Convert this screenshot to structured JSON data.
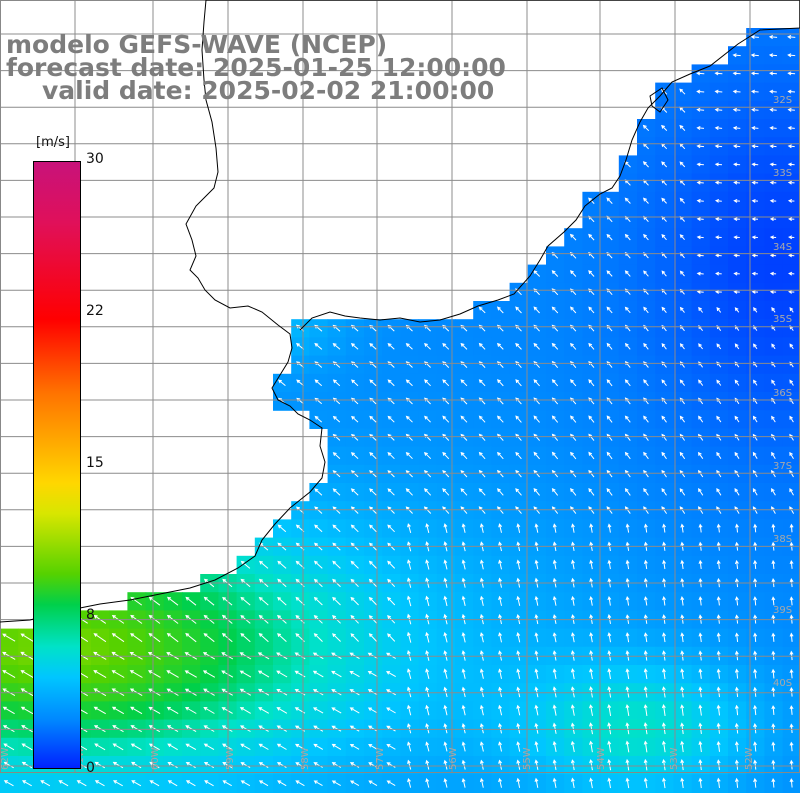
{
  "title": {
    "line1": "modelo GEFS-WAVE (NCEP)",
    "line2": "forecast date: 2025-01-25 12:00:00",
    "line3": "valid date: 2025-02-02 21:00:00"
  },
  "colorbar": {
    "unit": "[m/s]",
    "ticks": [
      "30",
      "22",
      "15",
      "8",
      "0"
    ],
    "tick_values": [
      30,
      22,
      15,
      8,
      0
    ],
    "min": 0,
    "max": 30,
    "colors": [
      "#0022ff",
      "#0088ff",
      "#00c6ff",
      "#00e2c8",
      "#00d04a",
      "#55d200",
      "#d8e600",
      "#ffd700",
      "#ff7200",
      "#ff0000",
      "#e0105a",
      "#c8127a"
    ]
  },
  "map": {
    "latitude_labels": [
      "32S",
      "33S",
      "34S",
      "35S",
      "36S",
      "37S",
      "38S",
      "39S",
      "40S"
    ],
    "longitude_labels": [
      "62W",
      "61W",
      "60W",
      "59W",
      "58W",
      "57W",
      "56W",
      "55W",
      "54W",
      "53W",
      "52W"
    ],
    "land_color": "#ffffff",
    "coastline_color": "#000000",
    "arrow_color": "#ffffff",
    "gridline_color": "#9a9a9a",
    "field_description": "wind speed (m/s) with direction arrows",
    "typical_speed_range": [
      2,
      9
    ]
  }
}
